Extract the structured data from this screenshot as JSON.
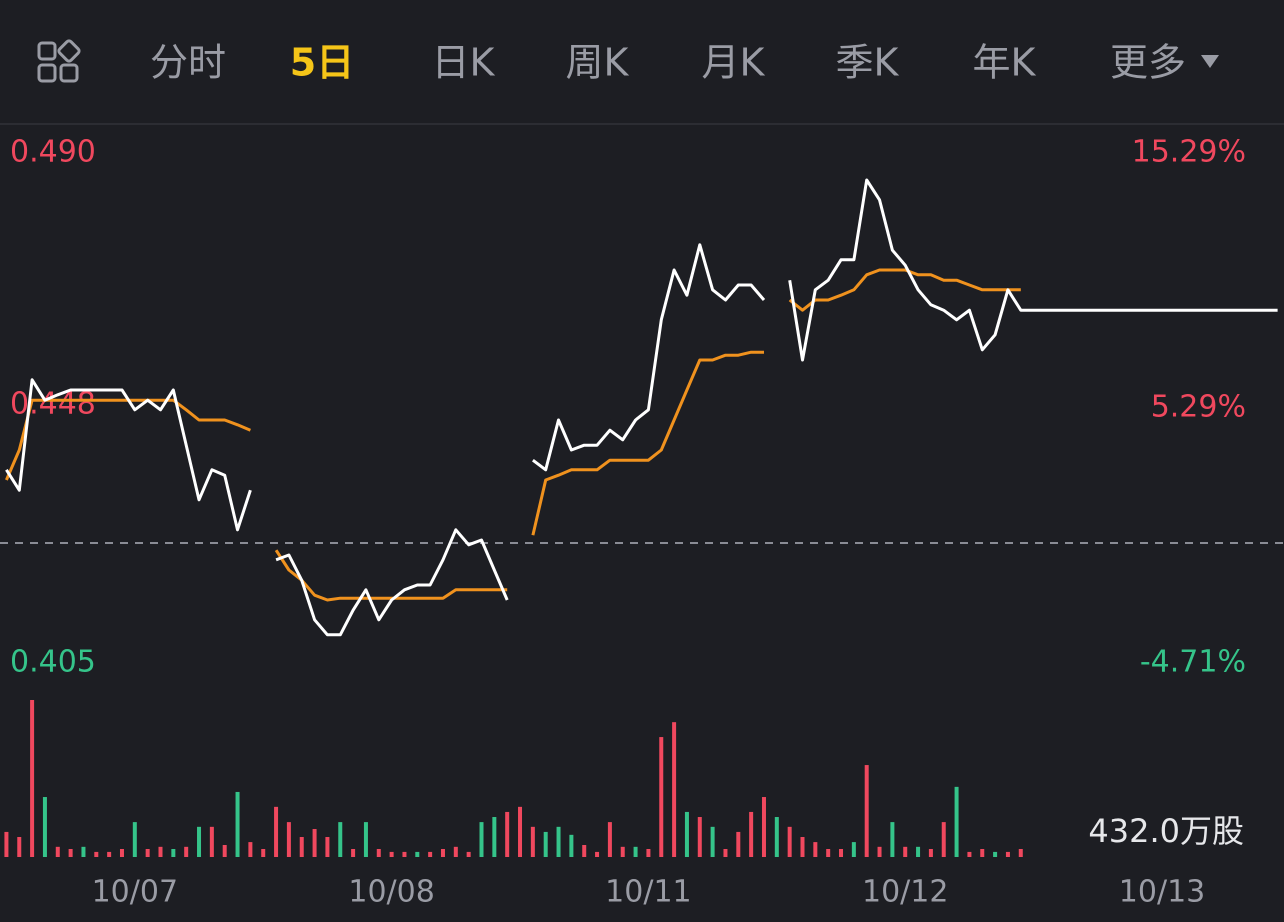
{
  "tabs": [
    "分时",
    "5日",
    "日K",
    "周K",
    "月K",
    "季K",
    "年K",
    "更多"
  ],
  "active_tab": 1,
  "chart_data": {
    "type": "line",
    "categories": [
      null,
      null,
      null,
      null,
      null,
      null,
      null,
      null,
      null,
      null,
      "10/07",
      null,
      null,
      null,
      null,
      null,
      null,
      null,
      null,
      null,
      null,
      null,
      null,
      null,
      null,
      null,
      null,
      null,
      null,
      null,
      "10/08",
      null,
      null,
      null,
      null,
      null,
      null,
      null,
      null,
      null,
      null,
      null,
      null,
      null,
      null,
      null,
      null,
      null,
      null,
      null,
      "10/11",
      null,
      null,
      null,
      null,
      null,
      null,
      null,
      null,
      null,
      null,
      null,
      null,
      null,
      null,
      null,
      null,
      null,
      null,
      null,
      "10/12",
      null,
      null,
      null,
      null,
      null,
      null,
      null,
      null,
      null,
      null,
      null,
      null,
      null,
      null,
      null,
      null,
      null,
      null,
      null,
      "10/13",
      null,
      null,
      null,
      null,
      null,
      null,
      null,
      null,
      null
    ],
    "ylim": [
      0.405,
      0.49
    ],
    "yticks": [
      {
        "value": 0.49,
        "label": "0.490"
      },
      {
        "value": 0.448,
        "label": "0.448"
      },
      {
        "value": 0.405,
        "label": "0.405"
      }
    ],
    "y2lim": [
      -4.71,
      15.29
    ],
    "y2ticks": [
      {
        "value": 15.29,
        "label": "15.29%"
      },
      {
        "value": 5.29,
        "label": "5.29%"
      },
      {
        "value": -4.71,
        "label": "-4.71%"
      }
    ],
    "baseline": 0.425,
    "up_color": "#f0485e",
    "down_color": "#35c48a",
    "series": [
      {
        "color": "#ffffff",
        "values": [
          0.4372,
          0.4338,
          0.4522,
          0.4488,
          0.4497,
          0.4505,
          0.4505,
          0.4505,
          0.4505,
          0.4505,
          0.4472,
          0.4488,
          0.4472,
          0.4505,
          0.4413,
          0.4322,
          0.4372,
          0.4363,
          0.4272,
          0.4338,
          null,
          0.4222,
          0.423,
          0.4188,
          0.4122,
          0.4097,
          0.4097,
          0.4138,
          0.4172,
          0.4122,
          0.4155,
          0.4172,
          0.418,
          0.418,
          0.4222,
          0.4272,
          0.4247,
          0.4255,
          0.4205,
          0.4155,
          null,
          0.4388,
          0.4372,
          0.4455,
          0.4405,
          0.4413,
          0.4413,
          0.4438,
          0.4422,
          0.4455,
          0.4472,
          0.4622,
          0.4705,
          0.4663,
          0.4747,
          0.4672,
          0.4655,
          0.468,
          0.468,
          0.4655,
          null,
          0.4688,
          0.4555,
          0.4672,
          0.4688,
          0.4722,
          0.4722,
          0.4855,
          0.4822,
          0.4738,
          0.4713,
          0.4672,
          0.4647,
          0.4638,
          0.4622,
          0.4638,
          0.4572,
          0.4597,
          0.4672,
          0.4638,
          0.4638,
          0.4638,
          0.4638,
          0.4638,
          0.4638,
          0.4638,
          0.4638,
          0.4638,
          0.4638,
          0.4638,
          0.4638,
          0.4638,
          0.4638,
          0.4638,
          0.4638,
          0.4638,
          0.4638,
          0.4638,
          0.4638,
          0.4638
        ]
      },
      {
        "color": "#f0921e",
        "values": [
          0.4355,
          0.4405,
          0.4488,
          0.4488,
          0.4488,
          0.4488,
          0.4488,
          0.4488,
          0.4488,
          0.4488,
          0.4488,
          0.4488,
          0.4488,
          0.4488,
          0.4472,
          0.4455,
          0.4455,
          0.4455,
          0.4447,
          0.4438,
          null,
          0.4238,
          0.4205,
          0.4188,
          0.4163,
          0.4155,
          0.4158,
          0.4158,
          0.4158,
          0.4158,
          0.4158,
          0.4158,
          0.4158,
          0.4158,
          0.4158,
          0.4172,
          0.4172,
          0.4172,
          0.4172,
          0.4172,
          null,
          0.4263,
          0.4355,
          0.4363,
          0.4372,
          0.4372,
          0.4372,
          0.4388,
          0.4388,
          0.4388,
          0.4388,
          0.4405,
          0.4455,
          0.4505,
          0.4555,
          0.4555,
          0.4563,
          0.4563,
          0.4568,
          0.4568,
          null,
          0.4655,
          0.4638,
          0.4655,
          0.4655,
          0.4663,
          0.4672,
          0.4697,
          0.4705,
          0.4705,
          0.4705,
          0.4697,
          0.4697,
          0.4688,
          0.4688,
          0.468,
          0.4672,
          0.4672,
          0.4672,
          0.4672,
          null,
          null,
          null,
          null,
          null,
          null,
          null,
          null,
          null,
          null,
          null,
          null,
          null,
          null,
          null,
          null,
          null,
          null,
          null,
          null
        ]
      }
    ],
    "volume": {
      "ylim": [
        0,
        432
      ],
      "yticks": [
        {
          "value": 432,
          "label": "432.0万股"
        }
      ],
      "values": [
        69,
        55,
        432,
        165,
        28,
        22,
        28,
        14,
        14,
        22,
        96,
        22,
        28,
        22,
        28,
        83,
        83,
        33,
        179,
        41,
        22,
        138,
        96,
        55,
        77,
        55,
        96,
        22,
        96,
        22,
        14,
        14,
        14,
        14,
        22,
        28,
        14,
        96,
        110,
        124,
        138,
        83,
        69,
        83,
        61,
        33,
        14,
        96,
        28,
        28,
        22,
        330,
        371,
        124,
        110,
        83,
        22,
        69,
        124,
        165,
        110,
        83,
        55,
        41,
        22,
        22,
        41,
        253,
        28,
        96,
        28,
        28,
        22,
        96,
        193,
        14,
        22,
        14,
        14,
        22,
        null,
        null,
        null,
        null,
        null,
        null,
        null,
        null,
        null,
        null,
        null,
        null,
        null,
        null,
        null,
        null,
        null,
        null,
        null,
        null
      ],
      "up": [
        true,
        true,
        true,
        false,
        true,
        true,
        false,
        true,
        true,
        true,
        false,
        true,
        true,
        false,
        true,
        false,
        true,
        true,
        false,
        true,
        true,
        true,
        true,
        true,
        true,
        true,
        false,
        true,
        false,
        true,
        true,
        true,
        false,
        true,
        true,
        true,
        true,
        false,
        false,
        true,
        true,
        true,
        false,
        false,
        false,
        true,
        true,
        true,
        true,
        false,
        true,
        true,
        true,
        false,
        true,
        false,
        true,
        true,
        true,
        true,
        false,
        true,
        true,
        true,
        true,
        true,
        false,
        true,
        true,
        false,
        true,
        false,
        true,
        true,
        false,
        true,
        true,
        false,
        true,
        true,
        null,
        null,
        null,
        null,
        null,
        null,
        null,
        null,
        null,
        null,
        null,
        null,
        null,
        null,
        null,
        null,
        null,
        null,
        null,
        null
      ]
    }
  }
}
